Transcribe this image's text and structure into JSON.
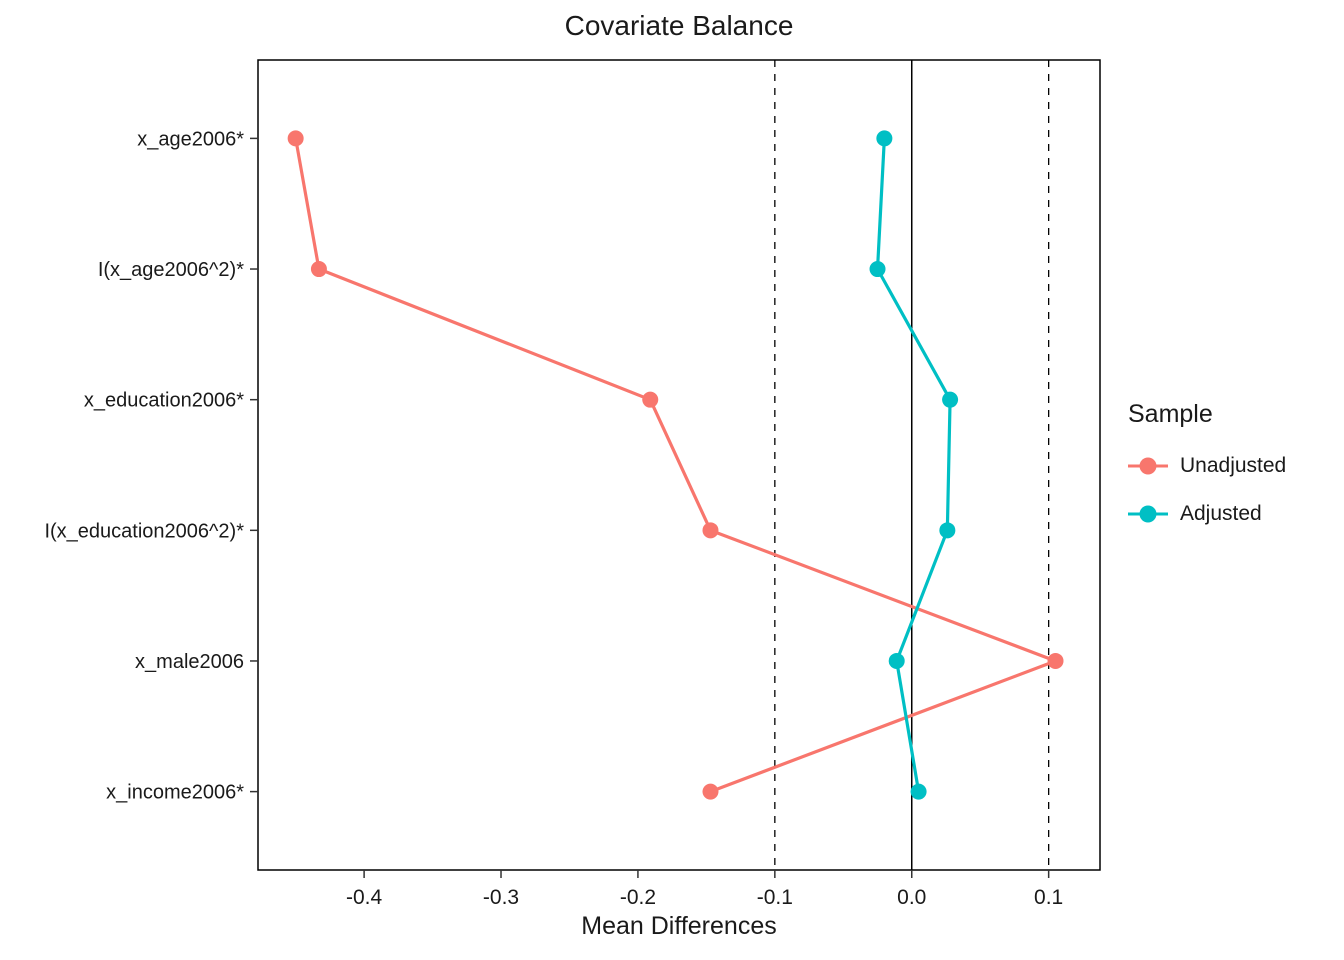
{
  "chart_data": {
    "type": "line",
    "title": "Covariate Balance",
    "xlabel": "Mean Differences",
    "ylabel": "",
    "legend_title": "Sample",
    "legend_position": "right",
    "grid": false,
    "marker": "circle",
    "categories": [
      "x_age2006*",
      "I(x_age2006^2)*",
      "x_education2006*",
      "I(x_education2006^2)*",
      "x_male2006",
      "x_income2006*"
    ],
    "series": [
      {
        "name": "Unadjusted",
        "color": "#F8766D",
        "values": [
          -0.45,
          -0.433,
          -0.191,
          -0.147,
          0.105,
          -0.147
        ]
      },
      {
        "name": "Adjusted",
        "color": "#00BFC4",
        "values": [
          -0.02,
          -0.025,
          0.028,
          0.026,
          -0.011,
          0.005
        ]
      }
    ],
    "x_tick_labels": [
      "-0.4",
      "-0.3",
      "-0.2",
      "-0.1",
      "0.0",
      "0.1"
    ],
    "x_tick_values": [
      -0.4,
      -0.3,
      -0.2,
      -0.1,
      0.0,
      0.1
    ],
    "xlim": [
      -0.4775,
      0.1375
    ],
    "reference_lines": {
      "solid": [
        0
      ],
      "dashed": [
        -0.1,
        0.1
      ]
    }
  }
}
